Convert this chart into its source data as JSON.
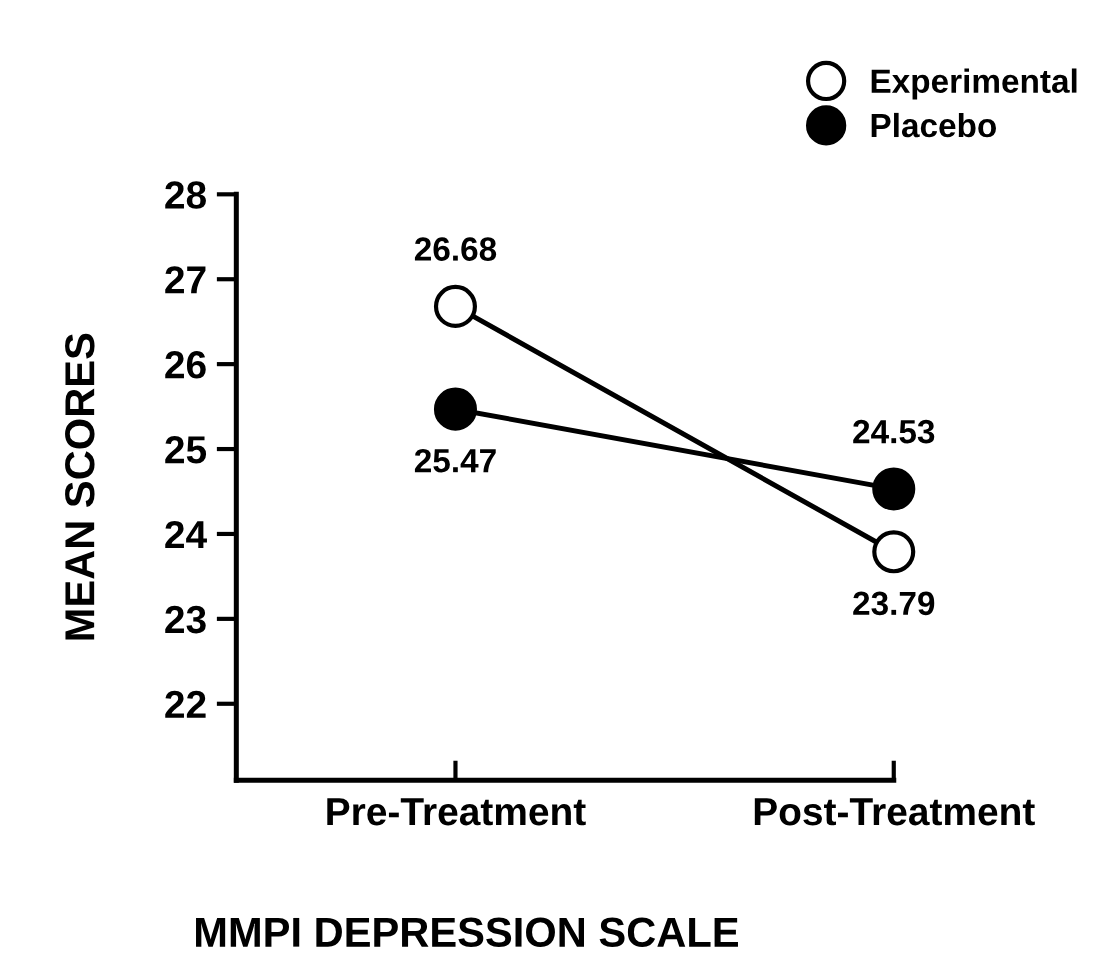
{
  "chart_data": {
    "type": "line",
    "xlabel": "MMPI DEPRESSION SCALE",
    "ylabel": "MEAN SCORES",
    "categories": [
      "Pre-Treatment",
      "Post-Treatment"
    ],
    "series": [
      {
        "name": "Experimental",
        "color": "#ffffff",
        "values": [
          26.68,
          23.79
        ]
      },
      {
        "name": "Placebo",
        "color": "#000000",
        "values": [
          25.47,
          24.53
        ]
      }
    ],
    "ylim": [
      21.1,
      28
    ],
    "yticks": [
      22,
      23,
      24,
      25,
      26,
      27,
      28
    ],
    "marker": "circle",
    "line_style": "solid",
    "data_labels": true,
    "legend": "top right",
    "grid": false
  }
}
